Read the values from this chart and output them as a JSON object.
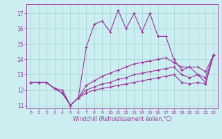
{
  "xlabel": "Windchill (Refroidissement éolien,°C)",
  "bg_color": "#cceef0",
  "line_color": "#993399",
  "xlim": [
    -0.5,
    23.5
  ],
  "ylim": [
    10.8,
    17.6
  ],
  "yticks": [
    11,
    12,
    13,
    14,
    15,
    16,
    17
  ],
  "xticks": [
    0,
    1,
    2,
    3,
    4,
    5,
    6,
    7,
    8,
    9,
    10,
    11,
    12,
    13,
    14,
    15,
    16,
    17,
    18,
    19,
    20,
    21,
    22,
    23
  ],
  "series1": [
    12.5,
    12.5,
    12.5,
    12.1,
    12.0,
    11.0,
    11.5,
    14.8,
    16.3,
    16.5,
    15.8,
    17.2,
    16.0,
    17.0,
    15.8,
    17.0,
    15.5,
    15.5,
    14.0,
    13.3,
    13.5,
    13.0,
    12.5,
    14.3
  ],
  "series2": [
    12.5,
    12.5,
    12.5,
    12.1,
    11.8,
    11.0,
    11.5,
    11.8,
    12.0,
    12.1,
    12.2,
    12.3,
    12.4,
    12.5,
    12.6,
    12.7,
    12.8,
    12.9,
    13.0,
    12.5,
    12.4,
    12.5,
    12.4,
    14.3
  ],
  "series3": [
    12.5,
    12.5,
    12.5,
    12.1,
    11.8,
    11.0,
    11.5,
    12.0,
    12.2,
    12.4,
    12.5,
    12.7,
    12.8,
    13.0,
    13.1,
    13.2,
    13.3,
    13.4,
    13.5,
    13.0,
    12.8,
    13.0,
    12.8,
    14.3
  ],
  "series4": [
    12.5,
    12.5,
    12.5,
    12.1,
    11.8,
    11.0,
    11.5,
    12.3,
    12.6,
    12.9,
    13.1,
    13.3,
    13.5,
    13.7,
    13.8,
    13.9,
    14.0,
    14.1,
    13.8,
    13.5,
    13.5,
    13.5,
    13.2,
    14.3
  ]
}
